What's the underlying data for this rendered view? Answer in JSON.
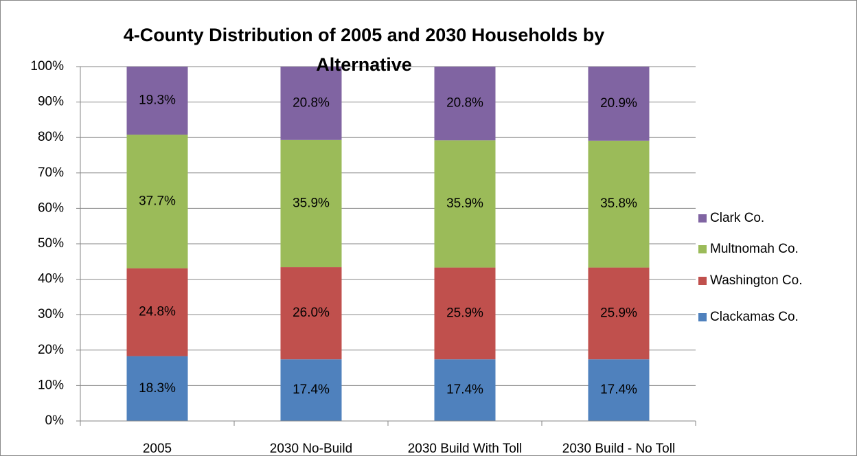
{
  "chart_data": {
    "type": "stacked_bar",
    "title": "4-County Distribution of 2005 and 2030 Households by Alternative",
    "categories": [
      "2005",
      "2030 No-Build",
      "2030 Build With Toll",
      "2030 Build - No Toll"
    ],
    "series": [
      {
        "name": "Clackamas Co.",
        "color": "#4f81bd",
        "values": [
          18.3,
          17.4,
          17.4,
          17.4
        ],
        "value_labels": [
          "18.3%",
          "17.4%",
          "17.4%",
          "17.4%"
        ]
      },
      {
        "name": "Washington Co.",
        "color": "#c0504d",
        "values": [
          24.8,
          26.0,
          25.9,
          25.9
        ],
        "value_labels": [
          "24.8%",
          "26.0%",
          "25.9%",
          "25.9%"
        ]
      },
      {
        "name": "Multnomah Co.",
        "color": "#9bbb59",
        "values": [
          37.7,
          35.9,
          35.9,
          35.8
        ],
        "value_labels": [
          "37.7%",
          "35.9%",
          "35.9%",
          "35.8%"
        ]
      },
      {
        "name": "Clark Co.",
        "color": "#8064a2",
        "values": [
          19.3,
          20.8,
          20.8,
          20.9
        ],
        "value_labels": [
          "19.3%",
          "20.8%",
          "20.8%",
          "20.9%"
        ]
      }
    ],
    "ylim": [
      0,
      100
    ],
    "yticks": [
      {
        "value": 0,
        "label": "0%"
      },
      {
        "value": 10,
        "label": "10%"
      },
      {
        "value": 20,
        "label": "20%"
      },
      {
        "value": 30,
        "label": "30%"
      },
      {
        "value": 40,
        "label": "40%"
      },
      {
        "value": 50,
        "label": "50%"
      },
      {
        "value": 60,
        "label": "60%"
      },
      {
        "value": 70,
        "label": "70%"
      },
      {
        "value": 80,
        "label": "80%"
      },
      {
        "value": 90,
        "label": "90%"
      },
      {
        "value": 100,
        "label": "100%"
      }
    ],
    "grid": true,
    "legend": "right"
  }
}
